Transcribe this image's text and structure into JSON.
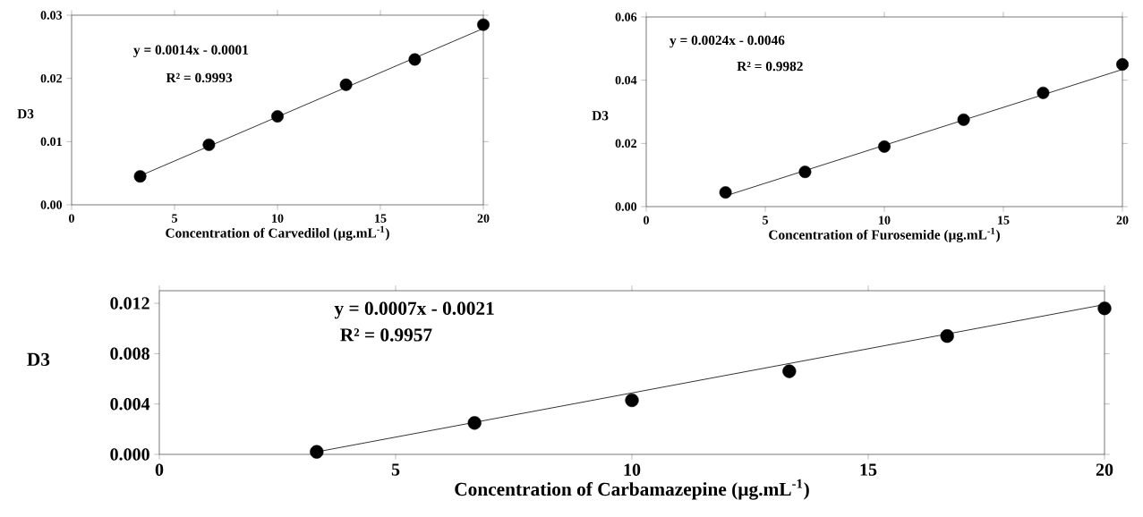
{
  "chart_data": [
    {
      "type": "scatter",
      "xlabel": "Concentration of Carvedilol (µg.mL$^{-1}$)",
      "ylabel": "D3",
      "annotations": [
        "y = 0.0014x - 0.0001",
        "R² = 0.9993"
      ],
      "grid": false,
      "xlim": [
        0,
        20
      ],
      "xticks": [
        0,
        5,
        10,
        15,
        20
      ],
      "ylim": [
        0,
        0.03
      ],
      "yticks": [
        {
          "value": 0,
          "label": "0.00"
        },
        {
          "value": 0.01,
          "label": "0.01"
        },
        {
          "value": 0.02,
          "label": "0.02"
        },
        {
          "value": 0.03,
          "label": "0.03"
        }
      ],
      "series": [
        {
          "marker": "circle",
          "color": "#000000",
          "x": [
            3.33,
            6.67,
            10,
            13.33,
            16.67,
            20
          ],
          "values": [
            0.0045,
            0.0095,
            0.014,
            0.019,
            0.023,
            0.0285
          ]
        },
        {
          "type": "line",
          "marker": "none",
          "color": "#000000",
          "x": [
            3.33,
            20
          ],
          "values": [
            0.0046,
            0.0279
          ]
        }
      ]
    },
    {
      "type": "scatter",
      "xlabel": "Concentration of Furosemide (µg.mL$^{-1}$)",
      "ylabel": "D3",
      "annotations": [
        "y = 0.0024x - 0.0046",
        "R² = 0.9982"
      ],
      "grid": false,
      "xlim": [
        0,
        20
      ],
      "xticks": [
        0,
        5,
        10,
        15,
        20
      ],
      "ylim": [
        0,
        0.06
      ],
      "yticks": [
        {
          "value": 0,
          "label": "0.00"
        },
        {
          "value": 0.02,
          "label": "0.02"
        },
        {
          "value": 0.04,
          "label": "0.04"
        },
        {
          "value": 0.06,
          "label": "0.06"
        }
      ],
      "series": [
        {
          "marker": "circle",
          "color": "#000000",
          "x": [
            3.33,
            6.67,
            10,
            13.33,
            16.67,
            20
          ],
          "values": [
            0.0045,
            0.011,
            0.019,
            0.0275,
            0.036,
            0.045
          ]
        },
        {
          "type": "line",
          "marker": "none",
          "color": "#000000",
          "x": [
            3.33,
            20
          ],
          "values": [
            0.0034,
            0.0434
          ]
        }
      ]
    },
    {
      "type": "scatter",
      "xlabel": "Concentration of Carbamazepine (µg.mL$^{-1}$)",
      "ylabel": "D3",
      "annotations": [
        "y = 0.0007x - 0.0021",
        "R² = 0.9957"
      ],
      "grid": false,
      "xlim": [
        0,
        20
      ],
      "xticks": [
        0,
        5,
        10,
        15,
        20
      ],
      "ylim": [
        0,
        0.013
      ],
      "yticks": [
        {
          "value": 0,
          "label": "0.000"
        },
        {
          "value": 0.004,
          "label": "0.004"
        },
        {
          "value": 0.008,
          "label": "0.008"
        },
        {
          "value": 0.012,
          "label": "0.012"
        }
      ],
      "series": [
        {
          "marker": "circle",
          "color": "#000000",
          "x": [
            3.33,
            6.67,
            10,
            13.33,
            16.67,
            20
          ],
          "values": [
            0.0002,
            0.0025,
            0.0043,
            0.0066,
            0.0094,
            0.0116
          ]
        },
        {
          "type": "line",
          "marker": "none",
          "color": "#000000",
          "x": [
            3.33,
            20
          ],
          "values": [
            0.0002,
            0.0119
          ]
        }
      ]
    }
  ]
}
